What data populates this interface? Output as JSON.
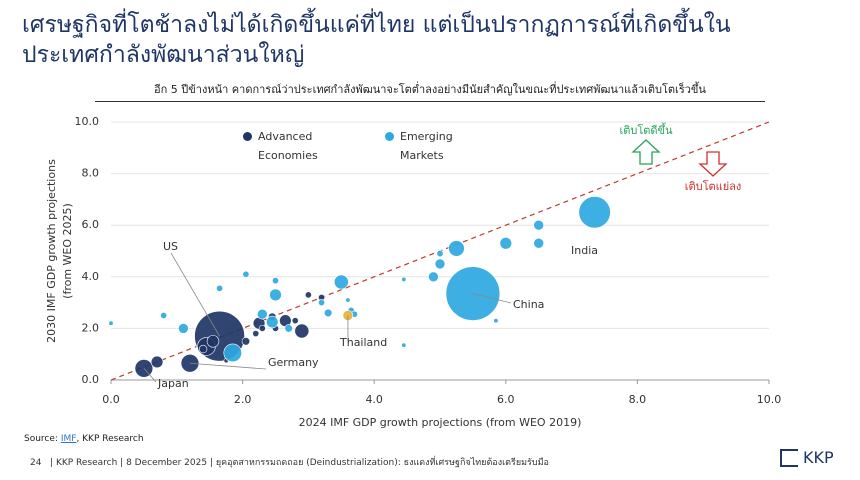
{
  "chart_data": {
    "type": "scatter",
    "title": "เศรษฐกิจที่โตช้าลงไม่ได้เกิดขึ้นแค่ที่ไทย แต่เป็นปรากฏการณ์ที่เกิดขึ้นใน ประเทศกำลังพัฒนาส่วนใหญ่",
    "subtitle": "อีก 5 ปีข้างหน้า คาดการณ์ว่าประเทศกำลังพัฒนาจะโตต่ำลงอย่างมีนัยสำคัญในขณะที่ประเทศพัฒนาแล้วเติบโตเร็วขึ้น",
    "xlabel": "2024 IMF GDP growth projections (from WEO 2019)",
    "ylabel": [
      "2030 IMF GDP growth projections",
      "(from WEO 2025)"
    ],
    "xlim": [
      0,
      10
    ],
    "ylim": [
      0,
      10
    ],
    "xticks": [
      {
        "value": 0,
        "label": "0.0"
      },
      {
        "value": 2,
        "label": "2.0"
      },
      {
        "value": 4,
        "label": "4.0"
      },
      {
        "value": 6,
        "label": "6.0"
      },
      {
        "value": 8,
        "label": "8.0"
      },
      {
        "value": 10,
        "label": "10.0"
      }
    ],
    "yticks": [
      {
        "value": 0,
        "label": "0.0"
      },
      {
        "value": 2,
        "label": "2.0"
      },
      {
        "value": 4,
        "label": "4.0"
      },
      {
        "value": 6,
        "label": "6.0"
      },
      {
        "value": 8,
        "label": "8.0"
      },
      {
        "value": 10,
        "label": "10.0"
      }
    ],
    "grid": "y",
    "annotations": [
      "เติบโตดีขึ้น",
      "เติบโตแย่ลง"
    ],
    "series": [
      {
        "name": "Advanced Economies",
        "color": "#1f3566",
        "legend": true,
        "x": [
          1.65,
          0.5,
          1.2,
          0.7,
          1.45,
          1.55,
          1.4,
          2.25,
          2.05,
          2.9,
          2.65,
          2.45,
          2.8,
          3.0,
          3.2,
          2.5,
          2.2,
          1.75,
          2.3
        ],
        "values": [
          1.7,
          0.45,
          0.65,
          0.7,
          1.3,
          1.5,
          1.2,
          2.2,
          1.5,
          1.9,
          2.3,
          2.45,
          2.3,
          3.3,
          3.2,
          2.0,
          1.8,
          0.75,
          2.0
        ],
        "sizes": [
          25,
          3.2,
          3.2,
          1.4,
          3.2,
          1.4,
          0.6,
          1.4,
          0.6,
          2,
          1.4,
          0.6,
          0.4,
          0.4,
          0.4,
          0.4,
          0.4,
          0.2,
          0.4
        ],
        "labels": [
          "US",
          "Japan",
          "Germany",
          null,
          null,
          null,
          null,
          null,
          null,
          null,
          null,
          null,
          null,
          null,
          null,
          null,
          null,
          null,
          null
        ]
      },
      {
        "name": "Emerging Markets",
        "color": "#2ea8e0",
        "legend": true,
        "x": [
          5.5,
          7.35,
          5.25,
          6.0,
          6.5,
          6.5,
          5.0,
          4.9,
          5.0,
          3.5,
          2.5,
          2.5,
          1.65,
          2.05,
          1.1,
          1.85,
          2.3,
          2.45,
          2.7,
          3.65,
          3.7,
          4.45,
          4.45,
          5.85,
          0.0,
          3.3,
          3.2,
          3.6,
          0.8
        ],
        "values": [
          3.35,
          6.5,
          5.1,
          5.3,
          5.3,
          6.0,
          4.5,
          4.0,
          4.9,
          3.8,
          3.3,
          3.85,
          3.55,
          4.1,
          2.0,
          1.05,
          2.55,
          2.25,
          2.0,
          2.7,
          2.55,
          1.35,
          3.9,
          2.3,
          2.2,
          2.6,
          3.0,
          3.1,
          2.5
        ],
        "sizes": [
          29,
          10,
          2.5,
          1.4,
          1,
          1,
          1,
          1,
          0.4,
          2,
          1.4,
          0.4,
          0.4,
          0.4,
          1,
          3.2,
          1,
          1.4,
          0.6,
          0.4,
          0.4,
          0.2,
          0.2,
          0.2,
          0.2,
          0.6,
          0.4,
          0.2,
          0.4
        ],
        "labels": [
          "China",
          "India",
          null,
          null,
          null,
          null,
          null,
          null,
          null,
          null,
          null,
          null,
          null,
          null,
          null,
          null,
          null,
          null,
          null,
          null,
          null,
          null,
          null,
          null,
          null,
          null,
          null,
          null,
          null
        ]
      },
      {
        "name": "Thailand",
        "color": "#e8b23a",
        "legend": false,
        "x": [
          3.6
        ],
        "values": [
          2.5
        ],
        "sizes": [
          1
        ]
      }
    ]
  },
  "source": {
    "label": "Source:",
    "link": "IMF",
    "rest": ", KKP Research"
  },
  "footer": {
    "page": "24",
    "text": "| KKP Research | 8 December 2025 | ยุคอุตสาหกรรมถดถอย (Deindustrialization): ธงแดงที่เศรษฐกิจไทยต้องเตรียมรับมือ"
  },
  "logo": "KKP"
}
